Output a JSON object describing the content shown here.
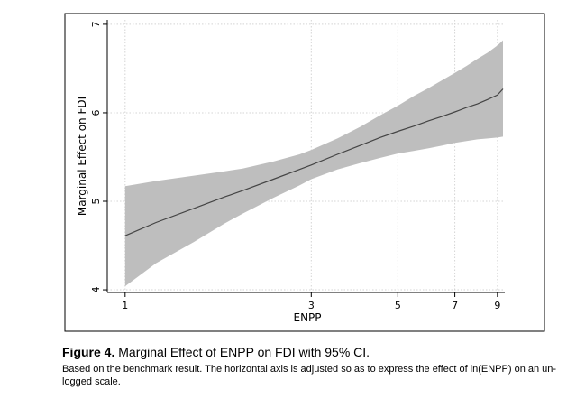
{
  "caption": {
    "label": "Figure 4.",
    "title": "Marginal Effect of ENPP on FDI with 95% CI.",
    "note": "Based on the benchmark result. The horizontal axis is adjusted so as to express the effect of ln(ENPP) on an un-logged scale."
  },
  "chart_data": {
    "type": "line",
    "title": "",
    "xlabel": "ENPP",
    "ylabel": "Marginal Effect on FDI",
    "xlim": [
      0.9,
      9.4
    ],
    "ylim": [
      3.97,
      7.05
    ],
    "x_ticks": [
      1,
      3,
      5,
      7,
      9
    ],
    "y_ticks": [
      4,
      5,
      6,
      7
    ],
    "grid": true,
    "legend": "none",
    "colors": {
      "line": "#444444",
      "band": "#bebebe",
      "grid": "#d4d4d4",
      "axis": "#000000"
    },
    "x": [
      1,
      1.2,
      1.5,
      1.8,
      2,
      2.4,
      2.8,
      3,
      3.5,
      4,
      4.5,
      5,
      5.5,
      6,
      6.5,
      7,
      7.5,
      8,
      8.5,
      9,
      9.3
    ],
    "series": [
      {
        "role": "estimate",
        "values": [
          4.61,
          4.76,
          4.92,
          5.05,
          5.12,
          5.25,
          5.36,
          5.41,
          5.53,
          5.63,
          5.72,
          5.79,
          5.85,
          5.91,
          5.96,
          6.01,
          6.06,
          6.1,
          6.15,
          6.2,
          6.27
        ]
      },
      {
        "role": "ci_upper",
        "values": [
          5.17,
          5.23,
          5.29,
          5.34,
          5.37,
          5.45,
          5.53,
          5.58,
          5.71,
          5.84,
          5.97,
          6.08,
          6.19,
          6.28,
          6.37,
          6.45,
          6.53,
          6.61,
          6.68,
          6.76,
          6.82
        ]
      },
      {
        "role": "ci_lower",
        "values": [
          4.04,
          4.3,
          4.54,
          4.75,
          4.86,
          5.04,
          5.18,
          5.25,
          5.36,
          5.43,
          5.49,
          5.54,
          5.57,
          5.6,
          5.63,
          5.66,
          5.68,
          5.7,
          5.71,
          5.72,
          5.73
        ]
      }
    ]
  }
}
